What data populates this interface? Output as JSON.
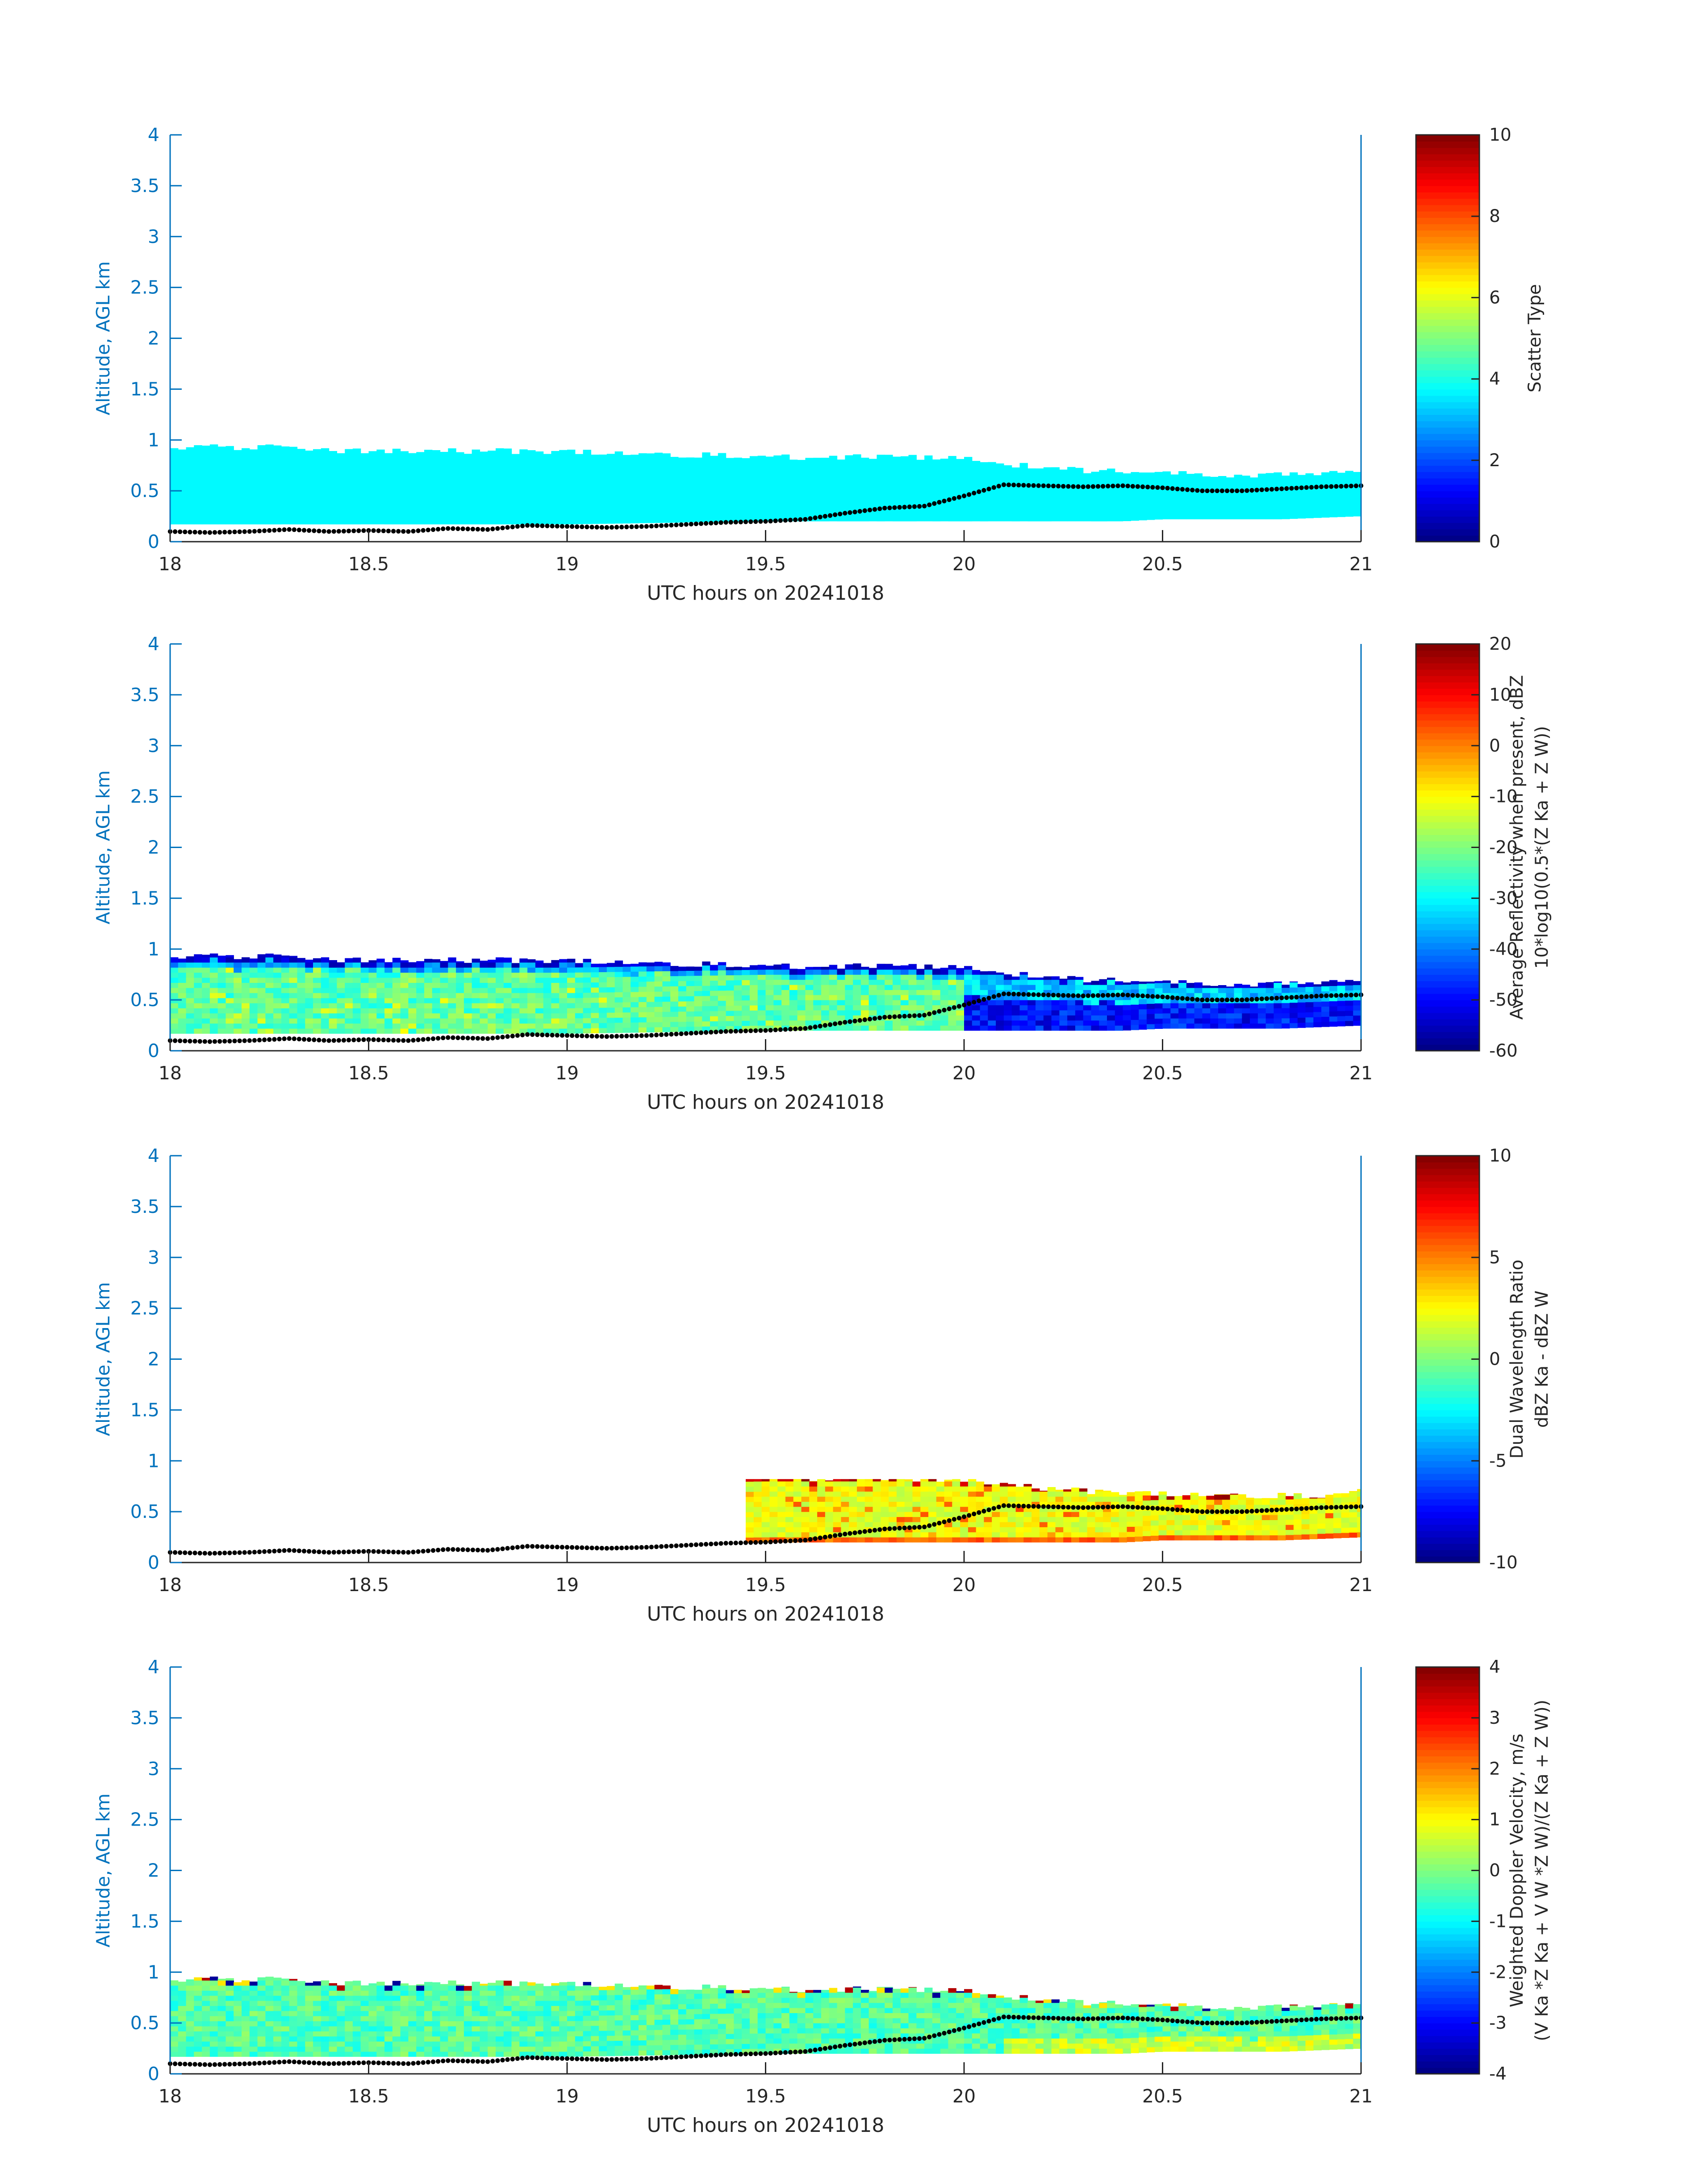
{
  "figure": {
    "date_label": "UTC hours on 20241018"
  },
  "chart_data": [
    {
      "type": "heatmap",
      "panel": 1,
      "ylabel": "Altitude, AGL km",
      "xlabel": "UTC hours on 20241018",
      "xlim": [
        18,
        21
      ],
      "ylim": [
        0,
        4
      ],
      "xticks": [
        "18",
        "18.5",
        "19",
        "19.5",
        "20",
        "20.5",
        "21"
      ],
      "yticks": [
        "0",
        "0.5",
        "1",
        "1.5",
        "2",
        "2.5",
        "3",
        "3.5",
        "4"
      ],
      "colorbar": {
        "label_lines": [
          "Scatter Type"
        ],
        "range": [
          0,
          10
        ],
        "ticks": [
          "0",
          "2",
          "4",
          "6",
          "8",
          "10"
        ]
      },
      "field": "scatter_type",
      "field_value": 3.7,
      "data_window": [
        18.0,
        21.0
      ],
      "black_dots": "cloud_base_series"
    },
    {
      "type": "heatmap",
      "panel": 2,
      "ylabel": "Altitude, AGL km",
      "xlabel": "UTC hours on 20241018",
      "xlim": [
        18,
        21
      ],
      "ylim": [
        0,
        4
      ],
      "xticks": [
        "18",
        "18.5",
        "19",
        "19.5",
        "20",
        "20.5",
        "21"
      ],
      "yticks": [
        "0",
        "0.5",
        "1",
        "1.5",
        "2",
        "2.5",
        "3",
        "3.5",
        "4"
      ],
      "colorbar": {
        "label_lines": [
          "Average Reflectivity when present, dBZ",
          "10*log10(0.5*(Z Ka + Z W))"
        ],
        "range": [
          -60,
          20
        ],
        "ticks": [
          "-60",
          "-50",
          "-40",
          "-30",
          "-20",
          "-10",
          "0",
          "10",
          "20"
        ]
      },
      "field": "reflectivity",
      "data_window": [
        18.0,
        21.0
      ],
      "black_dots": "cloud_base_series"
    },
    {
      "type": "heatmap",
      "panel": 3,
      "ylabel": "Altitude, AGL km",
      "xlabel": "UTC hours on 20241018",
      "xlim": [
        18,
        21
      ],
      "ylim": [
        0,
        4
      ],
      "xticks": [
        "18",
        "18.5",
        "19",
        "19.5",
        "20",
        "20.5",
        "21"
      ],
      "yticks": [
        "0",
        "0.5",
        "1",
        "1.5",
        "2",
        "2.5",
        "3",
        "3.5",
        "4"
      ],
      "colorbar": {
        "label_lines": [
          "Dual Wavelength Ratio",
          "dBZ Ka - dBZ W"
        ],
        "range": [
          -10,
          10
        ],
        "ticks": [
          "-10",
          "-5",
          "0",
          "5",
          "10"
        ]
      },
      "field": "dwr",
      "data_window": [
        19.45,
        21.0
      ],
      "black_dots": "cloud_base_series"
    },
    {
      "type": "heatmap",
      "panel": 4,
      "ylabel": "Altitude, AGL km",
      "xlabel": "UTC hours on 20241018",
      "xlim": [
        18,
        21
      ],
      "ylim": [
        0,
        4
      ],
      "xticks": [
        "18",
        "18.5",
        "19",
        "19.5",
        "20",
        "20.5",
        "21"
      ],
      "yticks": [
        "0",
        "0.5",
        "1",
        "1.5",
        "2",
        "2.5",
        "3",
        "3.5",
        "4"
      ],
      "colorbar": {
        "label_lines": [
          "Weighted Doppler Velocity, m/s",
          "(V Ka *Z Ka + V W *Z W)/(Z Ka + Z W))"
        ],
        "range": [
          -4,
          4
        ],
        "ticks": [
          "-4",
          "-3",
          "-2",
          "-1",
          "0",
          "1",
          "2",
          "3",
          "4"
        ]
      },
      "field": "velocity",
      "data_window": [
        18.0,
        21.0
      ],
      "black_dots": "cloud_base_series"
    }
  ],
  "cloud_layer": {
    "top_km": [
      [
        18.0,
        0.9
      ],
      [
        18.1,
        0.93
      ],
      [
        18.3,
        0.93
      ],
      [
        18.4,
        0.9
      ],
      [
        18.8,
        0.89
      ],
      [
        19.0,
        0.88
      ],
      [
        19.2,
        0.86
      ],
      [
        19.4,
        0.85
      ],
      [
        19.6,
        0.83
      ],
      [
        19.8,
        0.83
      ],
      [
        20.0,
        0.82
      ],
      [
        20.15,
        0.75
      ],
      [
        20.3,
        0.7
      ],
      [
        20.5,
        0.67
      ],
      [
        20.7,
        0.66
      ],
      [
        20.9,
        0.66
      ],
      [
        21.0,
        0.7
      ]
    ],
    "bottom_km": [
      [
        18.0,
        0.17
      ],
      [
        19.0,
        0.17
      ],
      [
        19.5,
        0.2
      ],
      [
        20.0,
        0.2
      ],
      [
        20.4,
        0.2
      ],
      [
        20.5,
        0.22
      ],
      [
        20.8,
        0.22
      ],
      [
        21.0,
        0.25
      ]
    ]
  },
  "cloud_base_series": [
    [
      18.0,
      0.1
    ],
    [
      18.1,
      0.09
    ],
    [
      18.2,
      0.1
    ],
    [
      18.3,
      0.12
    ],
    [
      18.4,
      0.1
    ],
    [
      18.5,
      0.11
    ],
    [
      18.6,
      0.1
    ],
    [
      18.7,
      0.13
    ],
    [
      18.8,
      0.12
    ],
    [
      18.9,
      0.16
    ],
    [
      19.0,
      0.15
    ],
    [
      19.1,
      0.14
    ],
    [
      19.2,
      0.15
    ],
    [
      19.3,
      0.17
    ],
    [
      19.4,
      0.19
    ],
    [
      19.5,
      0.2
    ],
    [
      19.6,
      0.22
    ],
    [
      19.7,
      0.28
    ],
    [
      19.8,
      0.33
    ],
    [
      19.9,
      0.35
    ],
    [
      20.0,
      0.45
    ],
    [
      20.1,
      0.56
    ],
    [
      20.2,
      0.55
    ],
    [
      20.3,
      0.54
    ],
    [
      20.4,
      0.55
    ],
    [
      20.5,
      0.53
    ],
    [
      20.6,
      0.5
    ],
    [
      20.7,
      0.5
    ],
    [
      20.8,
      0.52
    ],
    [
      20.9,
      0.54
    ],
    [
      21.0,
      0.55
    ]
  ],
  "colors": {
    "axis_blue": "#0072bd",
    "text_dark": "#262626",
    "dots": "#000000"
  }
}
